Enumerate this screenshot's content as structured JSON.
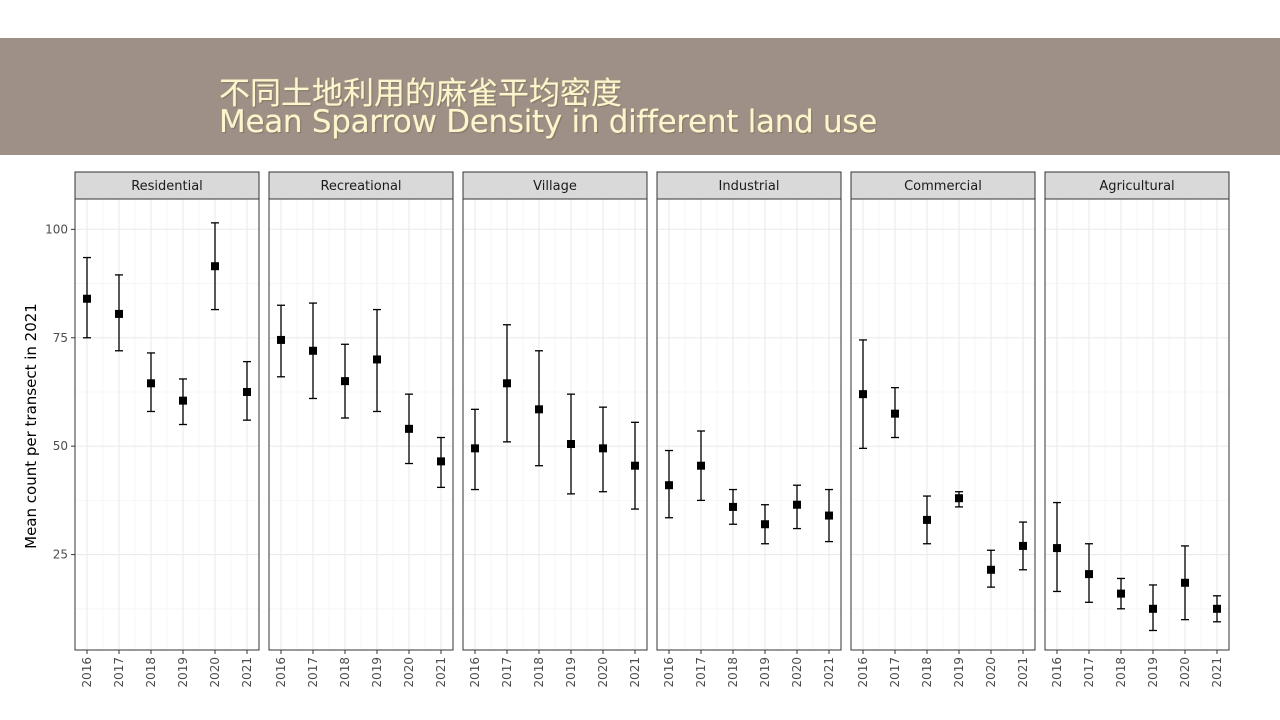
{
  "header": {
    "title_zh": "不同土地利用的麻雀平均密度",
    "title_en": "Mean Sparrow Density in different land use"
  },
  "colors": {
    "banner": "#9e8f87",
    "title_text": "#fbf6cf",
    "strip_fill": "#d9d9d9",
    "grid_major": "#ebebeb",
    "grid_minor": "#f5f5f5",
    "panel_border": "#333333",
    "point": "#000000"
  },
  "chart_data": {
    "type": "scatter",
    "facet_by": "land use",
    "xlabel": "",
    "ylabel": "Mean count per transect in 2021",
    "x": [
      "2016",
      "2017",
      "2018",
      "2019",
      "2020",
      "2021"
    ],
    "ylim": [
      3,
      107
    ],
    "yticks": [
      25,
      50,
      75,
      100
    ],
    "grid": true,
    "marker": "square",
    "error_bars": true,
    "panels": [
      {
        "name": "Residential",
        "values": [
          84,
          80.5,
          64.5,
          60.5,
          91.5,
          62.5
        ],
        "lower": [
          75,
          72,
          58,
          55,
          81.5,
          56
        ],
        "upper": [
          93.5,
          89.5,
          71.5,
          65.5,
          101.5,
          69.5
        ]
      },
      {
        "name": "Recreational",
        "values": [
          74.5,
          72,
          65,
          70,
          54,
          46.5
        ],
        "lower": [
          66,
          61,
          56.5,
          58,
          46,
          40.5
        ],
        "upper": [
          82.5,
          83,
          73.5,
          81.5,
          62,
          52
        ]
      },
      {
        "name": "Village",
        "values": [
          49.5,
          64.5,
          58.5,
          50.5,
          49.5,
          45.5
        ],
        "lower": [
          40,
          51,
          45.5,
          39,
          39.5,
          35.5
        ],
        "upper": [
          58.5,
          78,
          72,
          62,
          59,
          55.5
        ]
      },
      {
        "name": "Industrial",
        "values": [
          41,
          45.5,
          36,
          32,
          36.5,
          34
        ],
        "lower": [
          33.5,
          37.5,
          32,
          27.5,
          31,
          28
        ],
        "upper": [
          49,
          53.5,
          40,
          36.5,
          41,
          40
        ]
      },
      {
        "name": "Commercial",
        "values": [
          62,
          57.5,
          33,
          38,
          21.5,
          27
        ],
        "lower": [
          49.5,
          52,
          27.5,
          36,
          17.5,
          21.5
        ],
        "upper": [
          74.5,
          63.5,
          38.5,
          39.5,
          26,
          32.5
        ]
      },
      {
        "name": "Agricultural",
        "values": [
          26.5,
          20.5,
          16,
          12.5,
          18.5,
          12.5
        ],
        "lower": [
          16.5,
          14,
          12.5,
          7.5,
          10,
          9.5
        ],
        "upper": [
          37,
          27.5,
          19.5,
          18,
          27,
          15.5
        ]
      }
    ]
  }
}
